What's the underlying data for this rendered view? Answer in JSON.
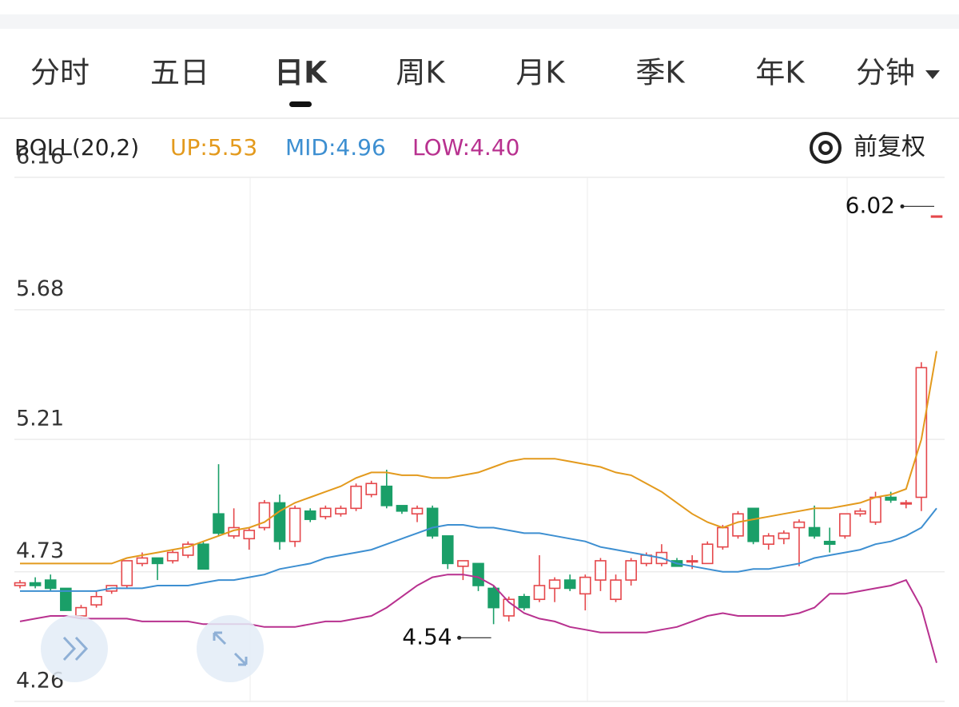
{
  "tabs": [
    "分时",
    "五日",
    "日K",
    "周K",
    "月K",
    "季K",
    "年K",
    "分钟"
  ],
  "selected_tab": 2,
  "adjust_button": "前复权",
  "chart_data": {
    "type": "candlestick",
    "indicator": "BOLL(20,2)",
    "ylim": [
      4.26,
      6.16
    ],
    "yticks": [
      4.26,
      4.73,
      5.21,
      5.68,
      6.16
    ],
    "grid": true,
    "up_color": "#e5474b",
    "down_color": "#1a9f68",
    "open": [
      4.68,
      4.69,
      4.7,
      4.67,
      4.57,
      4.61,
      4.66,
      4.68,
      4.76,
      4.78,
      4.77,
      4.79,
      4.83,
      4.94,
      4.86,
      4.85,
      4.89,
      4.98,
      4.84,
      4.95,
      4.93,
      4.94,
      4.96,
      5.01,
      5.04,
      4.97,
      4.94,
      4.96,
      4.86,
      4.75,
      4.76,
      4.67,
      4.57,
      4.64,
      4.63,
      4.67,
      4.7,
      4.65,
      4.7,
      4.63,
      4.7,
      4.76,
      4.76,
      4.77,
      4.77,
      4.76,
      4.82,
      4.86,
      4.96,
      4.83,
      4.85,
      4.89,
      4.89,
      4.84,
      4.86,
      4.94,
      4.91,
      5.0,
      4.98,
      5.0,
      6.02
    ],
    "high": [
      4.7,
      4.71,
      4.72,
      4.67,
      4.61,
      4.66,
      4.68,
      4.77,
      4.8,
      4.78,
      4.81,
      4.84,
      4.84,
      5.12,
      4.96,
      4.89,
      4.99,
      5.01,
      4.97,
      4.96,
      4.97,
      4.97,
      5.05,
      5.06,
      5.1,
      4.97,
      4.97,
      4.97,
      4.86,
      4.77,
      4.76,
      4.68,
      4.64,
      4.65,
      4.79,
      4.71,
      4.72,
      4.72,
      4.78,
      4.72,
      4.78,
      4.8,
      4.83,
      4.78,
      4.79,
      4.84,
      4.9,
      4.95,
      4.96,
      4.87,
      4.88,
      4.92,
      4.97,
      4.89,
      4.94,
      4.96,
      5.02,
      5.02,
      4.99,
      5.49,
      6.02
    ],
    "low": [
      4.67,
      4.67,
      4.66,
      4.59,
      4.56,
      4.6,
      4.65,
      4.67,
      4.75,
      4.7,
      4.76,
      4.78,
      4.74,
      4.86,
      4.85,
      4.81,
      4.88,
      4.81,
      4.82,
      4.91,
      4.92,
      4.93,
      4.95,
      5.0,
      4.96,
      4.94,
      4.91,
      4.85,
      4.74,
      4.7,
      4.66,
      4.54,
      4.55,
      4.59,
      4.62,
      4.62,
      4.66,
      4.59,
      4.66,
      4.62,
      4.68,
      4.75,
      4.75,
      4.75,
      4.74,
      4.76,
      4.81,
      4.85,
      4.83,
      4.81,
      4.83,
      4.75,
      4.85,
      4.8,
      4.85,
      4.93,
      4.9,
      4.98,
      4.96,
      4.95,
      6.02
    ],
    "close": [
      4.69,
      4.68,
      4.67,
      4.59,
      4.6,
      4.64,
      4.68,
      4.77,
      4.78,
      4.76,
      4.8,
      4.83,
      4.74,
      4.87,
      4.89,
      4.88,
      4.98,
      4.84,
      4.96,
      4.92,
      4.96,
      4.96,
      5.04,
      5.05,
      4.97,
      4.95,
      4.96,
      4.86,
      4.76,
      4.77,
      4.68,
      4.6,
      4.63,
      4.6,
      4.68,
      4.7,
      4.67,
      4.71,
      4.77,
      4.7,
      4.77,
      4.79,
      4.8,
      4.75,
      4.77,
      4.83,
      4.89,
      4.94,
      4.84,
      4.86,
      4.87,
      4.91,
      4.86,
      4.83,
      4.94,
      4.95,
      5.0,
      4.99,
      4.98,
      5.47,
      6.02
    ],
    "series": [
      {
        "name": "UP",
        "label": "UP:5.53",
        "color": "#e39a1d",
        "values": [
          4.76,
          4.76,
          4.76,
          4.76,
          4.76,
          4.76,
          4.76,
          4.78,
          4.79,
          4.8,
          4.81,
          4.82,
          4.84,
          4.86,
          4.88,
          4.89,
          4.91,
          4.95,
          4.98,
          5.0,
          5.02,
          5.04,
          5.07,
          5.09,
          5.09,
          5.08,
          5.08,
          5.07,
          5.07,
          5.08,
          5.09,
          5.11,
          5.13,
          5.14,
          5.14,
          5.14,
          5.13,
          5.12,
          5.11,
          5.09,
          5.08,
          5.05,
          5.02,
          4.98,
          4.94,
          4.91,
          4.89,
          4.91,
          4.92,
          4.93,
          4.94,
          4.95,
          4.96,
          4.96,
          4.97,
          4.98,
          5.0,
          5.01,
          5.03,
          5.21,
          5.53
        ]
      },
      {
        "name": "MID",
        "label": "MID:4.96",
        "color": "#3d8fd1",
        "values": [
          4.66,
          4.66,
          4.66,
          4.66,
          4.66,
          4.66,
          4.67,
          4.67,
          4.67,
          4.68,
          4.68,
          4.68,
          4.69,
          4.7,
          4.7,
          4.71,
          4.72,
          4.74,
          4.75,
          4.76,
          4.78,
          4.79,
          4.8,
          4.81,
          4.83,
          4.85,
          4.87,
          4.89,
          4.9,
          4.9,
          4.89,
          4.89,
          4.88,
          4.87,
          4.87,
          4.86,
          4.85,
          4.84,
          4.82,
          4.81,
          4.8,
          4.79,
          4.78,
          4.76,
          4.75,
          4.74,
          4.73,
          4.73,
          4.74,
          4.74,
          4.75,
          4.76,
          4.78,
          4.79,
          4.8,
          4.81,
          4.83,
          4.84,
          4.86,
          4.89,
          4.96
        ]
      },
      {
        "name": "LOW",
        "label": "LOW:4.40",
        "color": "#b8318f",
        "values": [
          4.55,
          4.56,
          4.57,
          4.57,
          4.56,
          4.56,
          4.56,
          4.56,
          4.55,
          4.55,
          4.55,
          4.55,
          4.54,
          4.54,
          4.54,
          4.54,
          4.53,
          4.53,
          4.53,
          4.54,
          4.55,
          4.55,
          4.56,
          4.57,
          4.6,
          4.64,
          4.68,
          4.71,
          4.72,
          4.72,
          4.71,
          4.68,
          4.62,
          4.58,
          4.56,
          4.55,
          4.53,
          4.52,
          4.51,
          4.51,
          4.51,
          4.51,
          4.52,
          4.53,
          4.55,
          4.57,
          4.58,
          4.57,
          4.57,
          4.57,
          4.57,
          4.58,
          4.6,
          4.65,
          4.65,
          4.66,
          4.67,
          4.68,
          4.7,
          4.6,
          4.4
        ]
      }
    ],
    "annotations": [
      {
        "label": "6.02",
        "value": 6.02,
        "position": "above"
      },
      {
        "label": "4.54",
        "value": 4.54,
        "position": "below"
      }
    ]
  }
}
